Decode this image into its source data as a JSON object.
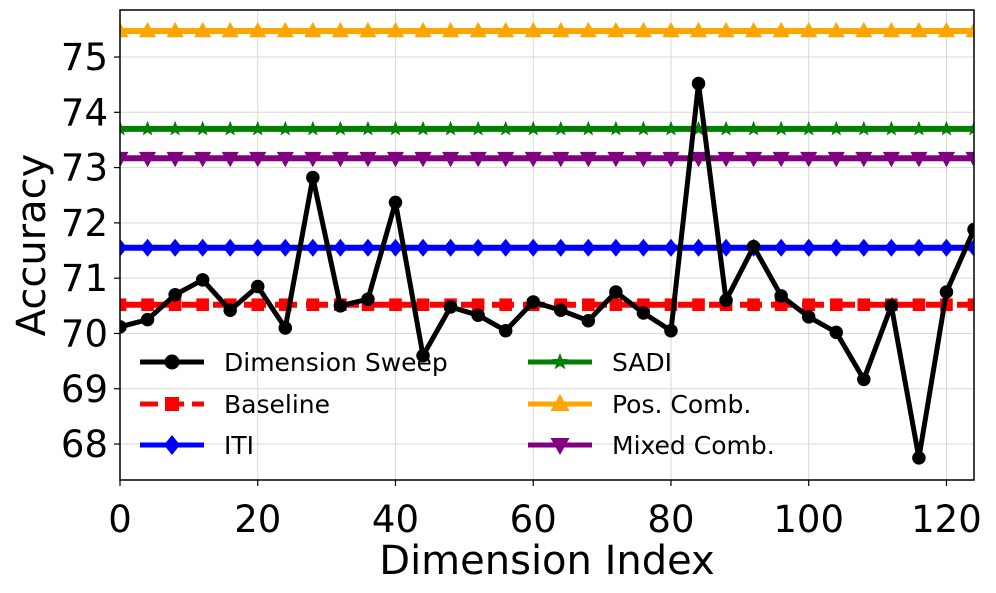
{
  "chart_data": {
    "type": "line",
    "title": "",
    "xlabel": "Dimension Index",
    "ylabel": "Accuracy",
    "xlim": [
      0,
      124
    ],
    "ylim": [
      67.35,
      75.85
    ],
    "xticks": [
      0,
      20,
      40,
      60,
      80,
      100,
      120
    ],
    "yticks": [
      68,
      69,
      70,
      71,
      72,
      73,
      74,
      75
    ],
    "grid": true,
    "legend_position": "bottom-left",
    "series": [
      {
        "name": "Dimension Sweep",
        "color": "#000000",
        "marker": "circle",
        "style": "solid",
        "x": [
          0,
          4,
          8,
          12,
          16,
          20,
          24,
          28,
          32,
          36,
          40,
          44,
          48,
          52,
          56,
          60,
          64,
          68,
          72,
          76,
          80,
          84,
          88,
          92,
          96,
          100,
          104,
          108,
          112,
          116,
          120,
          124
        ],
        "values": [
          70.12,
          70.25,
          70.7,
          70.97,
          70.42,
          70.85,
          70.1,
          72.82,
          70.5,
          70.62,
          72.37,
          69.6,
          70.48,
          70.33,
          70.05,
          70.57,
          70.42,
          70.23,
          70.75,
          70.37,
          70.05,
          74.52,
          70.6,
          71.57,
          70.68,
          70.3,
          70.02,
          69.17,
          70.5,
          67.75,
          70.75,
          71.88
        ]
      },
      {
        "name": "Baseline",
        "color": "#ff0000",
        "marker": "square",
        "style": "dashed",
        "constant": 70.52
      },
      {
        "name": "ITI",
        "color": "#0000ff",
        "marker": "diamond",
        "style": "solid",
        "constant": 71.55
      },
      {
        "name": "SADI",
        "color": "#008000",
        "marker": "star",
        "style": "solid",
        "constant": 73.7
      },
      {
        "name": "Pos. Comb.",
        "color": "#ffa500",
        "marker": "triangle-up",
        "style": "solid",
        "constant": 75.47
      },
      {
        "name": "Mixed Comb.",
        "color": "#800080",
        "marker": "triangle-down",
        "style": "solid",
        "constant": 73.17
      }
    ]
  }
}
